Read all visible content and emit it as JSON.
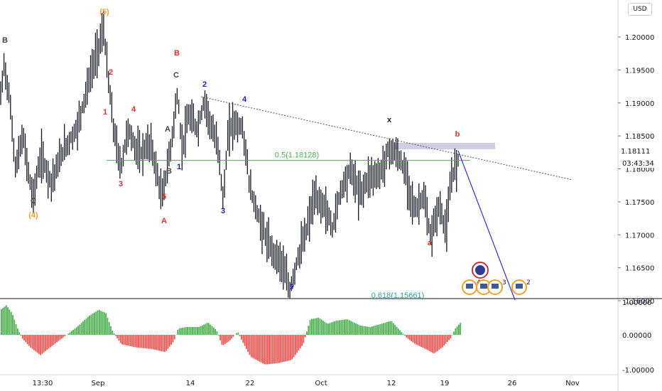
{
  "chart_data": [
    {
      "type": "bar",
      "pair_currency": "USD",
      "countdown": "03:43:34",
      "current_price_label": "1.18111",
      "y_ticks": [
        "1.20000",
        "1.19500",
        "1.19000",
        "1.18500",
        "1.18000",
        "1.17500",
        "1.17000",
        "1.16500",
        "1.16000"
      ],
      "x_ticks": [
        "13:30",
        "Sep",
        "14",
        "22",
        "Oct",
        "12",
        "19",
        "26",
        "Nov"
      ],
      "ylim": [
        1.155,
        1.212
      ],
      "fib_levels": [
        {
          "label": "0.5(1.18128)",
          "value": 1.18128
        },
        {
          "label": "0.618(1.15661)",
          "value": 1.15661
        }
      ],
      "wave_labels": [
        {
          "text": "B",
          "color": "#444444"
        },
        {
          "text": "(5)",
          "color": "#f0a030"
        },
        {
          "text": "2",
          "color": "#e03030"
        },
        {
          "text": "1",
          "color": "#e03030"
        },
        {
          "text": "4",
          "color": "#e03030"
        },
        {
          "text": "3",
          "color": "#e03030"
        },
        {
          "text": "5",
          "color": "#e03030"
        },
        {
          "text": "A",
          "color": "#e03030"
        },
        {
          "text": "B",
          "color": "#e03030"
        },
        {
          "text": "C",
          "color": "#444444"
        },
        {
          "text": "A",
          "color": "#444444"
        },
        {
          "text": "B",
          "color": "#444444"
        },
        {
          "text": "1",
          "color": "#2020c0"
        },
        {
          "text": "2",
          "color": "#2020c0"
        },
        {
          "text": "3",
          "color": "#2020c0"
        },
        {
          "text": "4",
          "color": "#2020c0"
        },
        {
          "text": "5",
          "color": "#2020c0"
        },
        {
          "text": "C",
          "color": "#444444"
        },
        {
          "text": "(4)",
          "color": "#f0a030"
        },
        {
          "text": "x",
          "color": "#222222"
        },
        {
          "text": "b",
          "color": "#e03030"
        },
        {
          "text": "a",
          "color": "#e03030"
        }
      ],
      "event_markers": [
        "4",
        "6",
        "3",
        "2"
      ]
    },
    {
      "type": "bar",
      "name_hint": "oscillator",
      "y_ticks": [
        "1.00000",
        "0.00000",
        "-1.00000"
      ],
      "ylim": [
        -1.1,
        1.0
      ],
      "colors": {
        "positive": "#4caf50",
        "negative": "#ef5350"
      }
    }
  ],
  "colors": {
    "candle": "#131722",
    "fib": "#4caf50",
    "fib2_text": "#26a69a",
    "trendline": "#555555",
    "projection": "#3030d0",
    "zone": "#b8bcd8"
  }
}
